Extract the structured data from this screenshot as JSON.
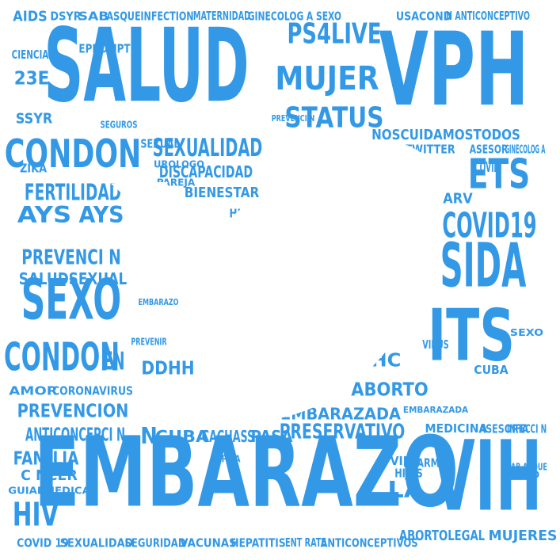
{
  "colors": {
    "word": "#3399e6",
    "background": "#ffffff",
    "silhouette": "#ffffff"
  },
  "silhouette": "twitter-bird",
  "words": [
    {
      "text": "SALUD",
      "tier": 1
    },
    {
      "text": "VPH",
      "tier": 1
    },
    {
      "text": "EMBARAZO",
      "tier": 1
    },
    {
      "text": "VIH",
      "tier": 1
    },
    {
      "text": "ITS",
      "tier": 1
    },
    {
      "text": "SIDA",
      "tier": 2
    },
    {
      "text": "SEXO",
      "tier": 2
    },
    {
      "text": "CONDON",
      "tier": 3
    },
    {
      "text": "CONDON",
      "tier": 3
    },
    {
      "text": "ETS",
      "tier": 3
    },
    {
      "text": "COVID19",
      "tier": 3
    },
    {
      "text": "PS4LIVE",
      "tier": 3
    },
    {
      "text": "MUJER",
      "tier": 3
    },
    {
      "text": "STATUS",
      "tier": 3
    },
    {
      "text": "SEXUALIDAD",
      "tier": 4
    },
    {
      "text": "FERTILIDAD",
      "tier": 4
    },
    {
      "text": "AYS",
      "tier": 4
    },
    {
      "text": "AYS",
      "tier": 4
    },
    {
      "text": "PREVENCI N",
      "tier": 4
    },
    {
      "text": "ANTICONCEPCI N",
      "tier": 4
    },
    {
      "text": "PRESERVATIVO",
      "tier": 4
    },
    {
      "text": "DISCAPACIDAD",
      "tier": 5
    },
    {
      "text": "BIENESTAR",
      "tier": 5
    },
    {
      "text": "SALUDSEXUAL",
      "tier": 5
    },
    {
      "text": "EMBARAZADA",
      "tier": 5
    },
    {
      "text": "ABORTO",
      "tier": 5
    },
    {
      "text": "PREVENCION",
      "tier": 5
    },
    {
      "text": "VHC",
      "tier": 5
    },
    {
      "text": "HIV",
      "tier": 5
    },
    {
      "text": "FAMILIA",
      "tier": 5
    },
    {
      "text": "C NCER",
      "tier": 5
    },
    {
      "text": "GUIAEMEDICA",
      "tier": 5
    },
    {
      "text": "LA",
      "tier": 5
    },
    {
      "text": "EN",
      "tier": 5
    },
    {
      "text": "N",
      "tier": 5
    },
    {
      "text": "CUBA",
      "tier": 5
    },
    {
      "text": "CACHASS",
      "tier": 5
    },
    {
      "text": "PASA",
      "tier": 5
    },
    {
      "text": "MUJERES",
      "tier": 5
    },
    {
      "text": "ABORTOLEGAL",
      "tier": 5
    },
    {
      "text": "NOSCUIDAMOSTODOS",
      "tier": 5
    },
    {
      "text": "DDHH",
      "tier": 5
    },
    {
      "text": "23E",
      "tier": 5
    },
    {
      "text": "ENARM",
      "tier": 5
    },
    {
      "text": "CIENCIA",
      "tier": 5
    },
    {
      "text": "AIDS",
      "tier": 6
    },
    {
      "text": "DSYR",
      "tier": 6
    },
    {
      "text": "SAB",
      "tier": 6
    },
    {
      "text": "ASQUE",
      "tier": 6
    },
    {
      "text": "INFECTION",
      "tier": 6
    },
    {
      "text": "MATERNIDAD",
      "tier": 6
    },
    {
      "text": "GINECOLOG",
      "tier": 6
    },
    {
      "text": "A SEXO",
      "tier": 6
    },
    {
      "text": "USACOND",
      "tier": 6
    },
    {
      "text": "N ANTICONCEPTIVO",
      "tier": 6
    },
    {
      "text": "HIGIENE",
      "tier": 6
    },
    {
      "text": "ZIKA",
      "tier": 6
    },
    {
      "text": "TWITTER",
      "tier": 6
    },
    {
      "text": "ASESOR",
      "tier": 6
    },
    {
      "text": "GINECOLOG A",
      "tier": 6
    },
    {
      "text": "SEXUAL",
      "tier": 6
    },
    {
      "text": "UROLOGO",
      "tier": 6
    },
    {
      "text": "PAREJA",
      "tier": 6
    },
    {
      "text": "ARV",
      "tier": 6
    },
    {
      "text": "SSYR",
      "tier": 6
    },
    {
      "text": "COVID",
      "tier": 6
    },
    {
      "text": "VIRUS",
      "tier": 6
    },
    {
      "text": "AMOR",
      "tier": 6
    },
    {
      "text": "CORONAVIRUS",
      "tier": 6
    },
    {
      "text": "MEDICINA",
      "tier": 6
    },
    {
      "text": "ASESORIA",
      "tier": 6
    },
    {
      "text": "INFECCI N",
      "tier": 6
    },
    {
      "text": "HIJOS",
      "tier": 6
    },
    {
      "text": "VIDA",
      "tier": 6
    },
    {
      "text": "EPROMPT",
      "tier": 6
    },
    {
      "text": "COVID 19",
      "tier": 6
    },
    {
      "text": "SEXUALIDAD",
      "tier": 6
    },
    {
      "text": "SEGURIDAD",
      "tier": 6
    },
    {
      "text": "VACUNAS",
      "tier": 6
    },
    {
      "text": "HEPATITIS",
      "tier": 6
    },
    {
      "text": "ENT RATE",
      "tier": 6
    },
    {
      "text": "ANTICONCEPTIVOS",
      "tier": 6
    },
    {
      "text": "PREVENIR",
      "tier": 6
    },
    {
      "text": "SEGUROS",
      "tier": 6
    },
    {
      "text": "EMBARAZO",
      "tier": 6
    },
    {
      "text": "SAB ASQUE",
      "tier": 6
    },
    {
      "text": "EMBARAZADA",
      "tier": 6
    },
    {
      "text": "SALUD",
      "tier": 6
    },
    {
      "text": "SEXO",
      "tier": 6
    },
    {
      "text": "CUBA",
      "tier": 6
    },
    {
      "text": "ESPA A",
      "tier": 6
    },
    {
      "text": "PREVENCI N",
      "tier": 6
    }
  ]
}
